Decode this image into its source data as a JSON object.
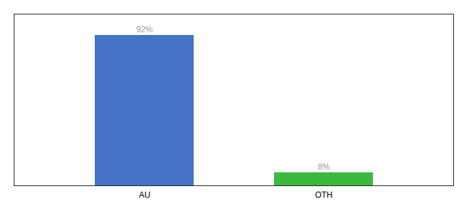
{
  "chart_data": {
    "type": "bar",
    "categories": [
      "AU",
      "OTH"
    ],
    "values": [
      92,
      8
    ],
    "value_labels": [
      "92%",
      "8%"
    ],
    "colors": [
      "#4472c4",
      "#3cb83c"
    ],
    "ylim": [
      0,
      105
    ],
    "data_labels": true,
    "tick_labels": "x"
  }
}
